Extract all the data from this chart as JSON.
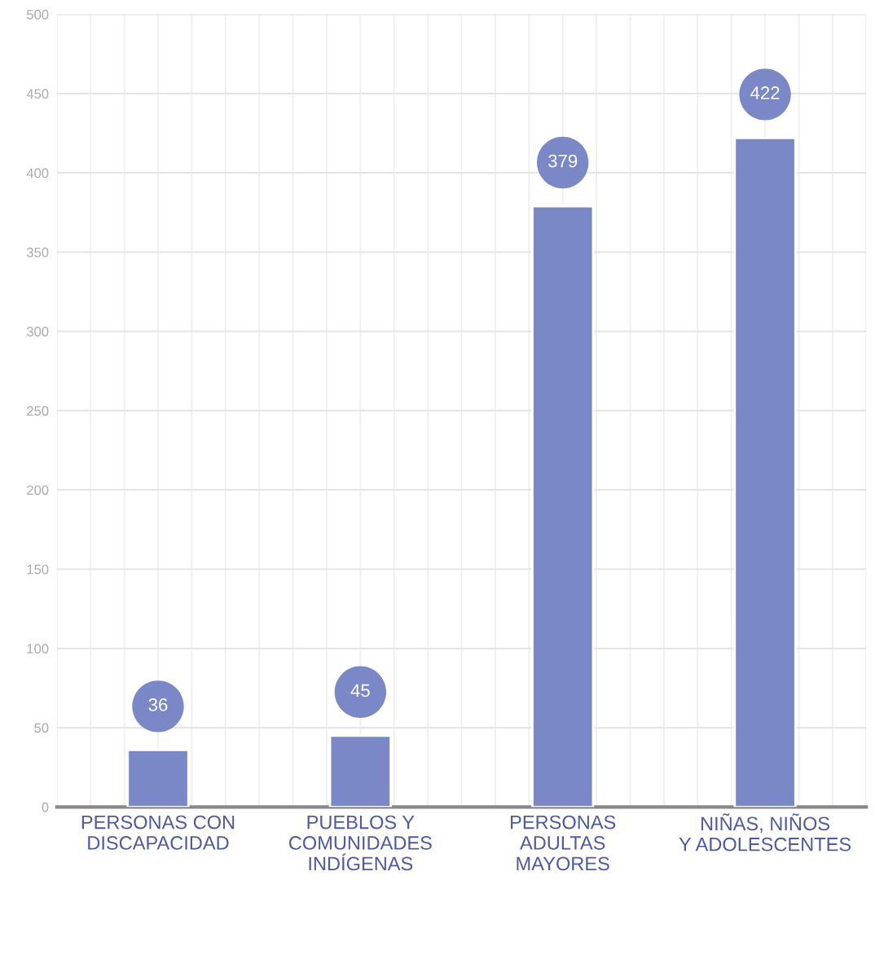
{
  "chart_data": {
    "type": "bar",
    "categories": [
      "PERSONAS CON\nDISCAPACIDAD",
      "PUEBLOS Y\nCOMUNIDADES\nINDÍGENAS",
      "PERSONAS\nADULTAS\nMAYORES",
      "NIÑAS, NIÑOS\nY ADOLESCENTES"
    ],
    "values": [
      36,
      45,
      379,
      422
    ],
    "color": "#7b88c8",
    "ylim": [
      0,
      500
    ],
    "yticks": [
      0,
      50,
      100,
      150,
      200,
      250,
      300,
      350,
      400,
      450,
      500
    ],
    "grid": true,
    "data_labels": true
  }
}
